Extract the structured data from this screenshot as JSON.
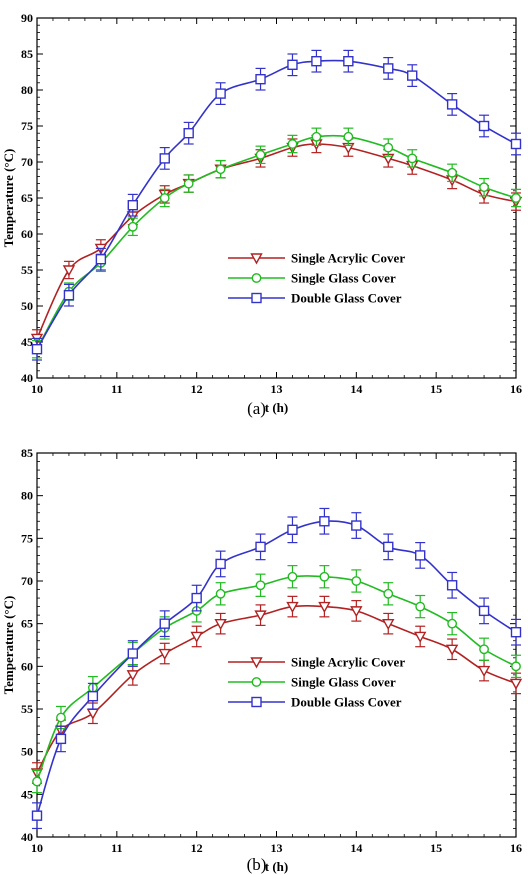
{
  "chart_data": [
    {
      "type": "line",
      "caption": "(a)",
      "xlabel": "t (h)",
      "ylabel": "Temperature (°C)",
      "xlim": [
        10,
        16
      ],
      "ylim": [
        40,
        90
      ],
      "xticks": [
        10,
        11,
        12,
        13,
        14,
        15,
        16
      ],
      "yticks": [
        40,
        45,
        50,
        55,
        60,
        65,
        70,
        75,
        80,
        85,
        90
      ],
      "grid": false,
      "legend_position": "center-right",
      "series": [
        {
          "name": "Single Acrylic Cover",
          "color": "#b22222",
          "marker": "triangle-down",
          "x": [
            10,
            10.4,
            10.8,
            11.2,
            11.6,
            11.9,
            12.3,
            12.8,
            13.2,
            13.5,
            13.9,
            14.4,
            14.7,
            15.2,
            15.6,
            16
          ],
          "y": [
            45.5,
            55,
            58,
            62.5,
            65.5,
            67,
            69,
            70.5,
            72,
            72.5,
            72,
            70.5,
            69.5,
            67.5,
            65.5,
            64.5
          ],
          "err": [
            1.2,
            1.2,
            1.2,
            1.2,
            1.2,
            1.2,
            1.2,
            1.2,
            1.2,
            1.2,
            1.2,
            1.2,
            1.2,
            1.2,
            1.2,
            1.2
          ]
        },
        {
          "name": "Single Glass Cover",
          "color": "#22bb22",
          "marker": "circle",
          "x": [
            10,
            10.4,
            10.8,
            11.2,
            11.6,
            11.9,
            12.3,
            12.8,
            13.2,
            13.5,
            13.9,
            14.4,
            14.7,
            15.2,
            15.6,
            16
          ],
          "y": [
            44,
            52,
            56,
            61,
            65,
            67,
            69,
            71,
            72.5,
            73.5,
            73.5,
            72,
            70.5,
            68.5,
            66.5,
            65
          ],
          "err": [
            1.2,
            1.2,
            1.2,
            1.2,
            1.2,
            1.2,
            1.2,
            1.2,
            1.2,
            1.2,
            1.2,
            1.2,
            1.2,
            1.2,
            1.2,
            1.2
          ]
        },
        {
          "name": "Double Glass Cover",
          "color": "#3333cc",
          "marker": "square",
          "x": [
            10,
            10.4,
            10.8,
            11.2,
            11.6,
            11.9,
            12.3,
            12.8,
            13.2,
            13.5,
            13.9,
            14.4,
            14.7,
            15.2,
            15.6,
            16
          ],
          "y": [
            44,
            51.5,
            56.5,
            64,
            70.5,
            74,
            79.5,
            81.5,
            83.5,
            84,
            84,
            83,
            82,
            78,
            75,
            72.5
          ],
          "err": [
            1.5,
            1.5,
            1.5,
            1.5,
            1.5,
            1.5,
            1.5,
            1.5,
            1.5,
            1.5,
            1.5,
            1.5,
            1.5,
            1.5,
            1.5,
            1.5
          ]
        }
      ]
    },
    {
      "type": "line",
      "caption": "(b)",
      "xlabel": "t (h)",
      "ylabel": "Temperature (°C)",
      "xlim": [
        10,
        16
      ],
      "ylim": [
        40,
        85
      ],
      "xticks": [
        10,
        11,
        12,
        13,
        14,
        15,
        16
      ],
      "yticks": [
        40,
        45,
        50,
        55,
        60,
        65,
        70,
        75,
        80,
        85
      ],
      "grid": false,
      "legend_position": "center-right",
      "series": [
        {
          "name": "Single Acrylic Cover",
          "color": "#b22222",
          "marker": "triangle-down",
          "x": [
            10,
            10.3,
            10.7,
            11.2,
            11.6,
            12,
            12.3,
            12.8,
            13.2,
            13.6,
            14,
            14.4,
            14.8,
            15.2,
            15.6,
            16
          ],
          "y": [
            47.5,
            52.5,
            54.5,
            59,
            61.5,
            63.5,
            65,
            66,
            67,
            67,
            66.5,
            65,
            63.5,
            62,
            59.5,
            58
          ],
          "err": [
            1.2,
            1.2,
            1.2,
            1.2,
            1.2,
            1.2,
            1.2,
            1.2,
            1.2,
            1.2,
            1.2,
            1.2,
            1.2,
            1.2,
            1.2,
            1.2
          ]
        },
        {
          "name": "Single Glass Cover",
          "color": "#22bb22",
          "marker": "circle",
          "x": [
            10,
            10.3,
            10.7,
            11.2,
            11.6,
            12,
            12.3,
            12.8,
            13.2,
            13.6,
            14,
            14.4,
            14.8,
            15.2,
            15.6,
            16
          ],
          "y": [
            46.5,
            54,
            57.5,
            61.5,
            64.5,
            66.5,
            68.5,
            69.5,
            70.5,
            70.5,
            70,
            68.5,
            67,
            65,
            62,
            60
          ],
          "err": [
            1.3,
            1.3,
            1.3,
            1.3,
            1.3,
            1.3,
            1.3,
            1.3,
            1.3,
            1.3,
            1.3,
            1.3,
            1.3,
            1.3,
            1.3,
            1.3
          ]
        },
        {
          "name": "Double Glass Cover",
          "color": "#3333cc",
          "marker": "square",
          "x": [
            10,
            10.3,
            10.7,
            11.2,
            11.6,
            12,
            12.3,
            12.8,
            13.2,
            13.6,
            14,
            14.4,
            14.8,
            15.2,
            15.6,
            16
          ],
          "y": [
            42.5,
            51.5,
            56.5,
            61.5,
            65,
            68,
            72,
            74,
            76,
            77,
            76.5,
            74,
            73,
            69.5,
            66.5,
            64
          ],
          "err": [
            1.5,
            1.5,
            1.5,
            1.5,
            1.5,
            1.5,
            1.5,
            1.5,
            1.5,
            1.5,
            1.5,
            1.5,
            1.5,
            1.5,
            1.5,
            1.5
          ]
        }
      ]
    }
  ]
}
